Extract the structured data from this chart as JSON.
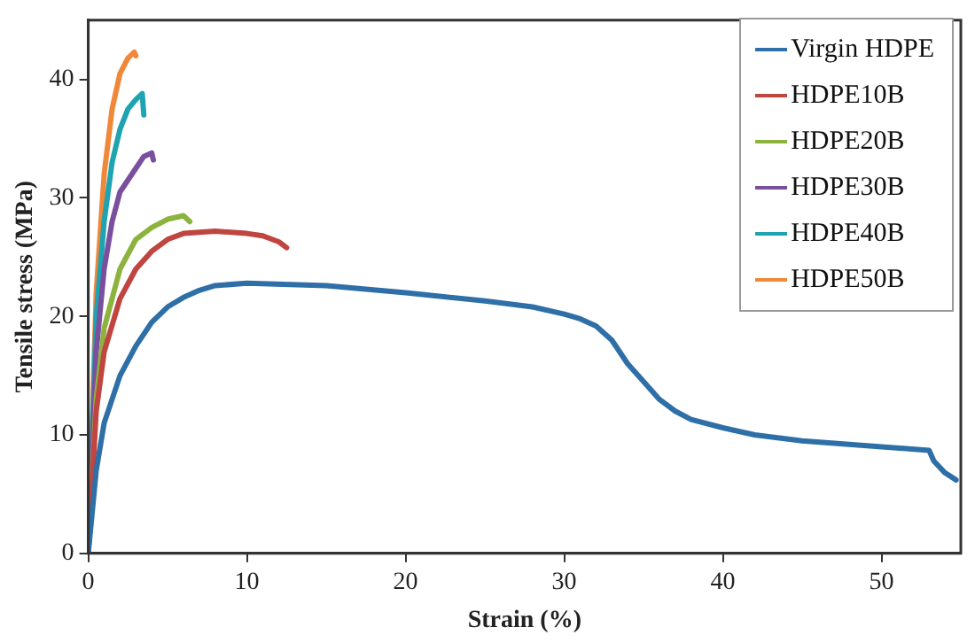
{
  "chart_data": {
    "type": "line",
    "xlabel": "Strain (%)",
    "ylabel": "Tensile stress (MPa)",
    "xlim": [
      0,
      55
    ],
    "xticks": [
      0,
      10,
      20,
      30,
      40,
      50
    ],
    "ylim": [
      0,
      45
    ],
    "yticks": [
      0,
      10,
      20,
      30,
      40
    ],
    "grid": false,
    "legend": "top right",
    "marker": "none",
    "line_style": "solid",
    "series": [
      {
        "name": "Virgin HDPE",
        "color": "#2e6fa7",
        "x": [
          0,
          0.5,
          1,
          2,
          3,
          4,
          5,
          6,
          7,
          8,
          10,
          15,
          20,
          25,
          28,
          30,
          31,
          32,
          33,
          34,
          35,
          36,
          37,
          38,
          40,
          42,
          45,
          50,
          53,
          53.3,
          54,
          54.7
        ],
        "values": [
          0,
          7,
          11,
          15,
          17.5,
          19.5,
          20.8,
          21.6,
          22.2,
          22.6,
          22.8,
          22.6,
          22,
          21.3,
          20.8,
          20.2,
          19.8,
          19.2,
          18,
          16,
          14.5,
          13,
          12,
          11.3,
          10.6,
          10,
          9.5,
          9,
          8.7,
          7.8,
          6.8,
          6.2
        ]
      },
      {
        "name": "HDPE10B",
        "color": "#c0443f",
        "x": [
          0,
          0.5,
          1,
          2,
          3,
          4,
          5,
          6,
          8,
          10,
          11,
          12,
          12.5
        ],
        "values": [
          0,
          12,
          17,
          21.5,
          24,
          25.5,
          26.5,
          27,
          27.2,
          27,
          26.8,
          26.3,
          25.8
        ]
      },
      {
        "name": "HDPE20B",
        "color": "#8db33f",
        "x": [
          0,
          0.5,
          1,
          2,
          3,
          4,
          5,
          6,
          6.4
        ],
        "values": [
          0,
          13,
          19,
          24,
          26.5,
          27.5,
          28.2,
          28.5,
          28
        ]
      },
      {
        "name": "HDPE30B",
        "color": "#7a4f9e",
        "x": [
          0,
          0.5,
          1,
          1.5,
          2,
          3,
          3.5,
          4,
          4.1
        ],
        "values": [
          0,
          17,
          24,
          28,
          30.5,
          32.5,
          33.5,
          33.8,
          33.2
        ]
      },
      {
        "name": "HDPE40B",
        "color": "#1ea3b0",
        "x": [
          0,
          0.5,
          1,
          1.5,
          2,
          2.5,
          3,
          3.4,
          3.5
        ],
        "values": [
          0,
          20,
          28,
          33,
          35.8,
          37.5,
          38.3,
          38.8,
          37
        ]
      },
      {
        "name": "HDPE50B",
        "color": "#f0883a",
        "x": [
          0,
          0.5,
          1,
          1.5,
          2,
          2.5,
          2.9,
          3
        ],
        "values": [
          0,
          22,
          32,
          37.5,
          40.5,
          41.8,
          42.3,
          42
        ]
      }
    ]
  }
}
